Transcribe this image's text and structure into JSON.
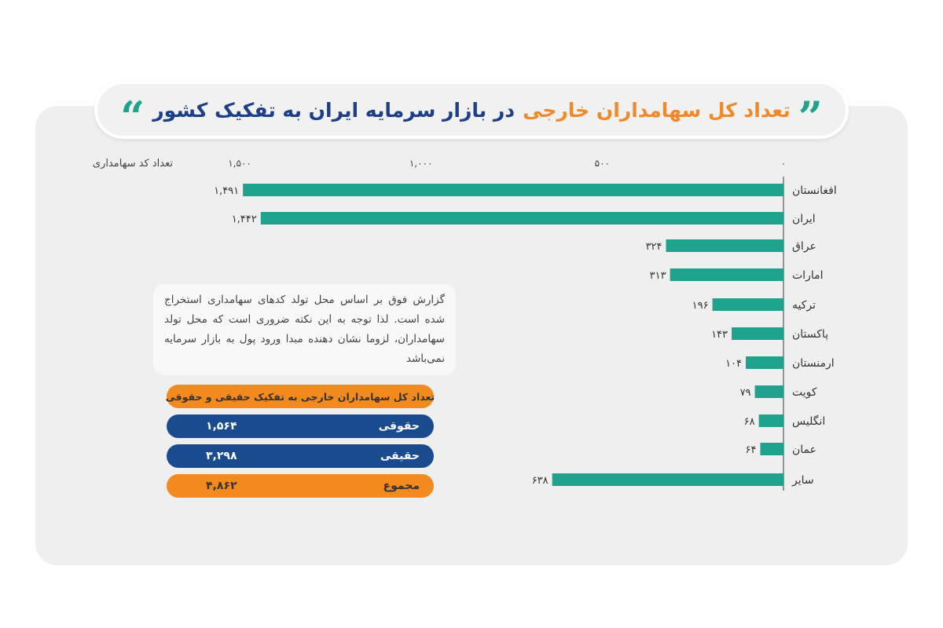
{
  "title": {
    "part1": "تعداد کل سهامداران خارجی",
    "part2": "در بازار سرمایه ایران به تفکیک کشور"
  },
  "colors": {
    "bar": "#1fa28e",
    "accent_orange": "#f28a1e",
    "accent_blue": "#1b4b8f"
  },
  "chart_data": {
    "type": "bar",
    "orientation": "horizontal",
    "direction": "rtl",
    "xlabel": "تعداد کد سهامداری",
    "xlim": [
      0,
      1500
    ],
    "ticks": [
      0,
      500,
      1000,
      1500
    ],
    "tick_labels": [
      "۰",
      "۵۰۰",
      "۱,۰۰۰",
      "۱,۵۰۰"
    ],
    "categories": [
      "افغانستان",
      "ایران",
      "عراق",
      "امارات",
      "ترکیه",
      "پاکستان",
      "ارمنستان",
      "کویت",
      "انگلیس",
      "عمان",
      "سایر"
    ],
    "values": [
      1491,
      1442,
      324,
      313,
      196,
      143,
      104,
      79,
      68,
      64,
      638
    ],
    "value_labels": [
      "۱,۴۹۱",
      "۱,۴۴۲",
      "۳۲۴",
      "۳۱۳",
      "۱۹۶",
      "۱۴۳",
      "۱۰۴",
      "۷۹",
      "۶۸",
      "۶۴",
      "۶۳۸"
    ],
    "grid": false
  },
  "note": "گزارش فوق بر اساس محل تولد کدهای سهامداری استخراج شده است. لذا توجه به این نکته ضروری است که محل تولد سهامداران، لزوما نشان دهنده مبدا ورود پول به بازار سرمایه نمی‌باشد",
  "summary": {
    "header": "تعداد کل سهامداران خارجی به تفکیک حقیقی و حقوقی",
    "rows": [
      {
        "label": "حقوقی",
        "value": "۱,۵۶۴"
      },
      {
        "label": "حقیقی",
        "value": "۳,۲۹۸"
      },
      {
        "label": "مجموع",
        "value": "۴,۸۶۲"
      }
    ]
  }
}
